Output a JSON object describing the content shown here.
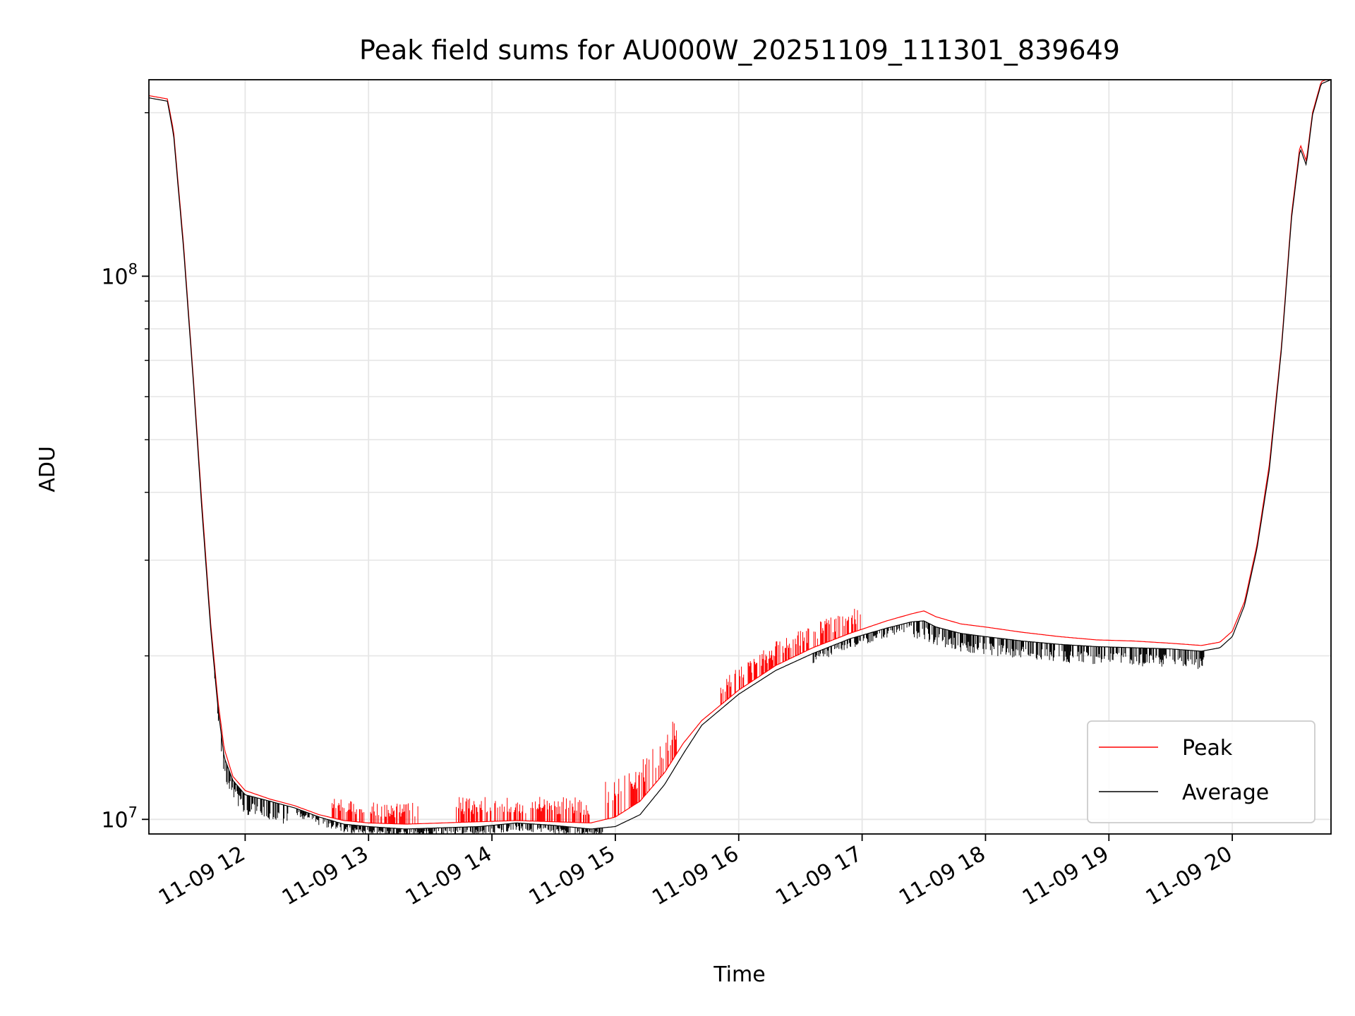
{
  "chart_data": {
    "type": "line",
    "title": "Peak field sums for AU000W_20251109_111301_839649",
    "xlabel": "Time",
    "ylabel": "ADU",
    "yscale": "log",
    "xlim": [
      11.22,
      20.8
    ],
    "ylim": [
      9400000.0,
      230000000.0
    ],
    "grid": true,
    "legend_position": "lower right",
    "x_ticks": [
      {
        "value": 12,
        "label": "11-09 12"
      },
      {
        "value": 13,
        "label": "11-09 13"
      },
      {
        "value": 14,
        "label": "11-09 14"
      },
      {
        "value": 15,
        "label": "11-09 15"
      },
      {
        "value": 16,
        "label": "11-09 16"
      },
      {
        "value": 17,
        "label": "11-09 17"
      },
      {
        "value": 18,
        "label": "11-09 18"
      },
      {
        "value": 19,
        "label": "11-09 19"
      },
      {
        "value": 20,
        "label": "11-09 20"
      }
    ],
    "y_major_ticks": [
      {
        "value": 10000000,
        "base": "10",
        "exp": "7"
      },
      {
        "value": 100000000,
        "base": "10",
        "exp": "8"
      }
    ],
    "y_minor_ticks": [
      20000000,
      30000000,
      40000000,
      50000000,
      60000000,
      70000000,
      80000000,
      90000000,
      200000000
    ],
    "series": [
      {
        "name": "Peak",
        "color": "#ff0000",
        "x": [
          11.22,
          11.37,
          11.42,
          11.5,
          11.58,
          11.65,
          11.72,
          11.78,
          11.83,
          11.9,
          12.0,
          12.2,
          12.4,
          12.6,
          12.8,
          13.0,
          13.3,
          13.6,
          13.9,
          14.2,
          14.5,
          14.8,
          15.0,
          15.2,
          15.4,
          15.55,
          15.7,
          16.0,
          16.3,
          16.6,
          16.9,
          17.2,
          17.4,
          17.5,
          17.6,
          17.8,
          18.0,
          18.3,
          18.6,
          18.9,
          19.2,
          19.5,
          19.75,
          19.9,
          20.0,
          20.1,
          20.2,
          20.3,
          20.4,
          20.48,
          20.55,
          20.6,
          20.65,
          20.72,
          20.8
        ],
        "y": [
          215000000,
          212000000,
          185000000,
          115000000,
          65000000,
          38000000,
          23000000,
          16500000,
          13500000,
          12000000,
          11300000,
          10900000,
          10600000,
          10200000,
          9950000,
          9850000,
          9800000,
          9850000,
          9900000,
          9950000,
          9900000,
          9850000,
          10100000,
          10800000,
          12200000,
          13800000,
          15200000,
          17300000,
          19200000,
          20700000,
          22000000,
          23200000,
          23900000,
          24200000,
          23600000,
          22900000,
          22600000,
          22100000,
          21700000,
          21400000,
          21300000,
          21100000,
          20900000,
          21200000,
          22200000,
          25200000,
          32000000,
          45000000,
          75000000,
          130000000,
          175000000,
          163000000,
          200000000,
          228000000,
          232000000
        ]
      },
      {
        "name": "Average",
        "color": "#000000",
        "x": [
          11.22,
          11.37,
          11.42,
          11.5,
          11.58,
          11.65,
          11.72,
          11.78,
          11.83,
          11.9,
          12.0,
          12.2,
          12.4,
          12.6,
          12.8,
          13.0,
          13.3,
          13.6,
          13.9,
          14.2,
          14.5,
          14.8,
          15.0,
          15.2,
          15.4,
          15.55,
          15.7,
          16.0,
          16.3,
          16.6,
          16.9,
          17.2,
          17.4,
          17.5,
          17.6,
          17.8,
          18.0,
          18.3,
          18.6,
          18.9,
          19.2,
          19.5,
          19.75,
          19.9,
          20.0,
          20.1,
          20.2,
          20.3,
          20.4,
          20.48,
          20.55,
          20.6,
          20.65,
          20.72,
          20.8
        ],
        "y": [
          213000000,
          210000000,
          182000000,
          113000000,
          64000000,
          37000000,
          22500000,
          16000000,
          13000000,
          11800000,
          11100000,
          10800000,
          10500000,
          10100000,
          9800000,
          9700000,
          9600000,
          9650000,
          9700000,
          9850000,
          9750000,
          9600000,
          9700000,
          10200000,
          11600000,
          13200000,
          14900000,
          17000000,
          18800000,
          20200000,
          21500000,
          22500000,
          23100000,
          23200000,
          22600000,
          22000000,
          21700000,
          21300000,
          21000000,
          20800000,
          20700000,
          20600000,
          20400000,
          20700000,
          21700000,
          24800000,
          31500000,
          44000000,
          74000000,
          128000000,
          172000000,
          160000000,
          198000000,
          226000000,
          230000000
        ]
      }
    ]
  }
}
